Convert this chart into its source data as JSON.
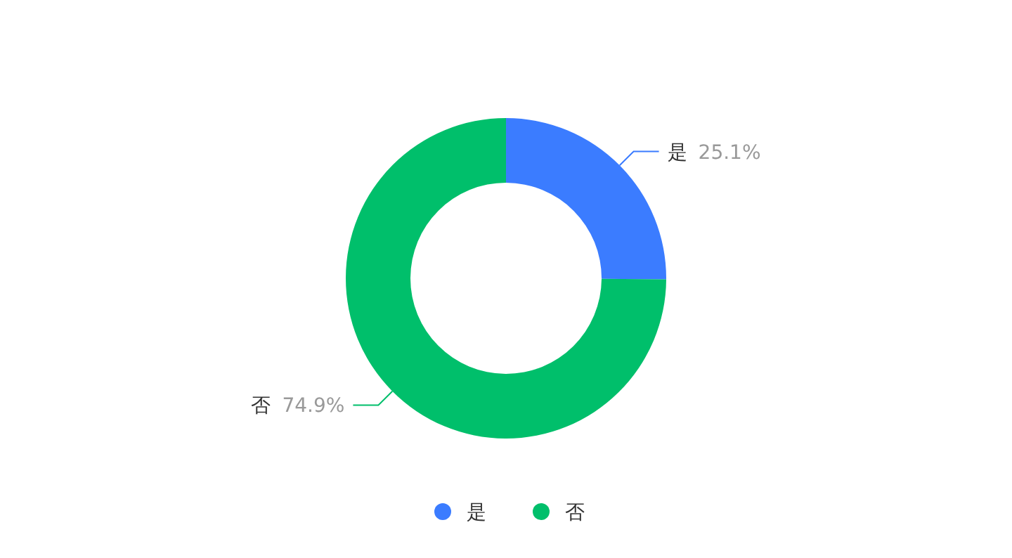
{
  "chart_data": {
    "type": "donut",
    "categories": [
      "是",
      "否"
    ],
    "values": [
      25.1,
      74.9
    ],
    "colors": [
      "#3b7cff",
      "#00bf6b"
    ],
    "value_labels": [
      "25.1%",
      "74.9%"
    ],
    "legend": "bottom"
  }
}
